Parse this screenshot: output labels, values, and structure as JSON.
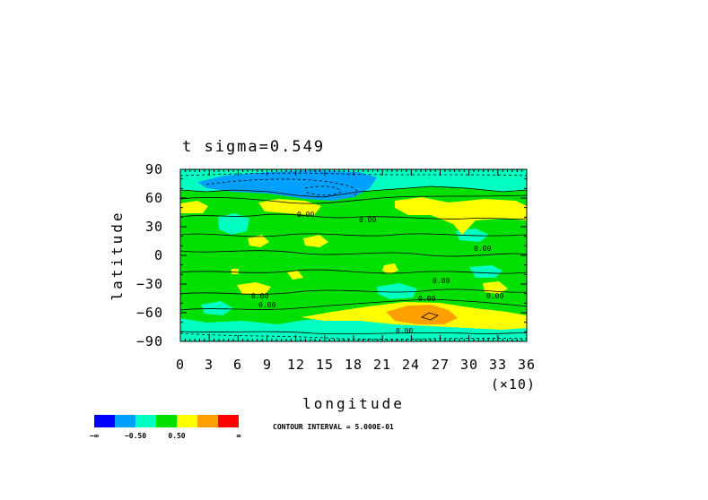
{
  "chart_data": {
    "type": "heatmap",
    "title": "t  sigma=0.549",
    "xlabel": "longitude",
    "ylabel": "latitude",
    "x_multiplier": "(×10)",
    "xlim": [
      0,
      36
    ],
    "ylim": [
      -90,
      90
    ],
    "x_ticks": [
      "0",
      "3",
      "6",
      "9",
      "12",
      "15",
      "18",
      "21",
      "24",
      "27",
      "30",
      "33",
      "36"
    ],
    "y_ticks": [
      "90",
      "60",
      "30",
      "0",
      "−30",
      "−60",
      "−90"
    ],
    "y_tick_values": [
      90,
      60,
      30,
      0,
      -30,
      -60,
      -90
    ],
    "contour_interval_text": "CONTOUR INTERVAL = 5.000E-01",
    "contour_label": "0.00",
    "colorbar": {
      "colors": [
        "#0000ff",
        "#00a0ff",
        "#00ffc0",
        "#00e000",
        "#ffff00",
        "#ffa000",
        "#ff0000"
      ],
      "labels": [
        "−∞",
        "−0.50",
        "0.50",
        "∞"
      ]
    },
    "regions": [
      {
        "level": "0.5 to 1.0",
        "color": "#ffff00",
        "lon": [
          0,
          2.5
        ],
        "lat": [
          48,
          58
        ]
      },
      {
        "level": "0.5 to 1.0",
        "color": "#ffff00",
        "lon": [
          8,
          15
        ],
        "lat": [
          45,
          58
        ]
      },
      {
        "level": "0.5 to 1.0",
        "color": "#ffff00",
        "lon": [
          23,
          36
        ],
        "lat": [
          35,
          60
        ]
      },
      {
        "level": "0.5 to 1.0",
        "color": "#ffff00",
        "lon": [
          13,
          36
        ],
        "lat": [
          -55,
          -75
        ]
      },
      {
        "level": "1.0 to 1.5",
        "color": "#ffa000",
        "lon": [
          22,
          27
        ],
        "lat": [
          -55,
          -70
        ]
      },
      {
        "level": "-1.0 to -0.5",
        "color": "#00a0ff",
        "lon": [
          2,
          20
        ],
        "lat": [
          70,
          90
        ]
      },
      {
        "level": "-0.5 to 0",
        "color": "#00ffc0",
        "lon": [
          0,
          36
        ],
        "lat": [
          -75,
          -90
        ]
      }
    ]
  }
}
